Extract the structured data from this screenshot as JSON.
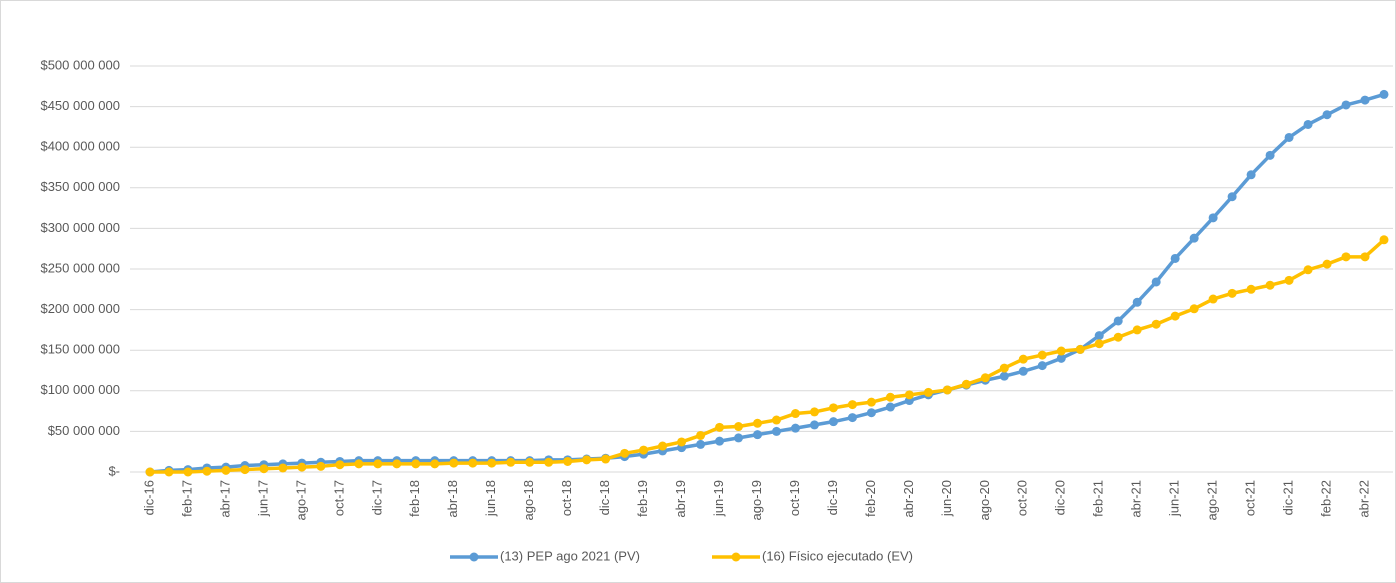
{
  "chart_data": {
    "type": "line",
    "categories": [
      "dic-16",
      null,
      "feb-17",
      null,
      "abr-17",
      null,
      "jun-17",
      null,
      "ago-17",
      null,
      "oct-17",
      null,
      "dic-17",
      null,
      "feb-18",
      null,
      "abr-18",
      null,
      "jun-18",
      null,
      "ago-18",
      null,
      "oct-18",
      null,
      "dic-18",
      null,
      "feb-19",
      null,
      "abr-19",
      null,
      "jun-19",
      null,
      "ago-19",
      null,
      "oct-19",
      null,
      "dic-19",
      null,
      "feb-20",
      null,
      "abr-20",
      null,
      "jun-20",
      null,
      "ago-20",
      null,
      "oct-20",
      null,
      "dic-20",
      null,
      "feb-21",
      null,
      "abr-21",
      null,
      "jun-21",
      null,
      "ago-21",
      null,
      "oct-21",
      null,
      "dic-21",
      null,
      "feb-22",
      null,
      "abr-22",
      null
    ],
    "series": [
      {
        "name": "(13) PEP ago 2021 (PV)",
        "color": "#5b9bd5",
        "values": [
          0,
          2000000,
          3000000,
          5000000,
          6000000,
          8000000,
          9000000,
          10000000,
          11000000,
          12000000,
          13000000,
          14000000,
          14000000,
          14000000,
          14000000,
          14000000,
          14000000,
          14000000,
          14000000,
          14000000,
          14000000,
          15000000,
          15000000,
          16000000,
          17000000,
          19000000,
          22000000,
          26000000,
          30000000,
          34000000,
          38000000,
          42000000,
          46000000,
          50000000,
          54000000,
          58000000,
          62000000,
          67000000,
          73000000,
          80000000,
          88000000,
          95000000,
          101000000,
          107000000,
          113000000,
          118000000,
          124000000,
          131000000,
          140000000,
          151000000,
          168000000,
          186000000,
          209000000,
          234000000,
          263000000,
          288000000,
          313000000,
          339000000,
          366000000,
          390000000,
          412000000,
          428000000,
          440000000,
          452000000,
          458000000,
          465000000
        ]
      },
      {
        "name": "(16) Físico ejecutado (EV)",
        "color": "#ffc000",
        "values": [
          0,
          0,
          0,
          1000000,
          2000000,
          3000000,
          4000000,
          5000000,
          6000000,
          7000000,
          9000000,
          10000000,
          10000000,
          10000000,
          10000000,
          10000000,
          11000000,
          11000000,
          11000000,
          12000000,
          12000000,
          12000000,
          13000000,
          15000000,
          16000000,
          23000000,
          27000000,
          32000000,
          37000000,
          45000000,
          55000000,
          56000000,
          60000000,
          64000000,
          72000000,
          74000000,
          79000000,
          83000000,
          86000000,
          92000000,
          95000000,
          98000000,
          101000000,
          108000000,
          116000000,
          128000000,
          139000000,
          144000000,
          149000000,
          151000000,
          158000000,
          166000000,
          175000000,
          182000000,
          192000000,
          201000000,
          213000000,
          220000000,
          225000000,
          230000000,
          236000000,
          249000000,
          256000000,
          265000000,
          265000000,
          286000000
        ]
      }
    ],
    "ylim": [
      0,
      500000000
    ],
    "yticks": [
      {
        "value": 0,
        "label": "$-"
      },
      {
        "value": 50000000,
        "label": "$50 000 000"
      },
      {
        "value": 100000000,
        "label": "$100 000 000"
      },
      {
        "value": 150000000,
        "label": "$150 000 000"
      },
      {
        "value": 200000000,
        "label": "$200 000 000"
      },
      {
        "value": 250000000,
        "label": "$250 000 000"
      },
      {
        "value": 300000000,
        "label": "$300 000 000"
      },
      {
        "value": 350000000,
        "label": "$350 000 000"
      },
      {
        "value": 400000000,
        "label": "$400 000 000"
      },
      {
        "value": 450000000,
        "label": "$450 000 000"
      },
      {
        "value": 500000000,
        "label": "$500 000 000"
      }
    ],
    "grid": true,
    "legend": "bottom"
  }
}
